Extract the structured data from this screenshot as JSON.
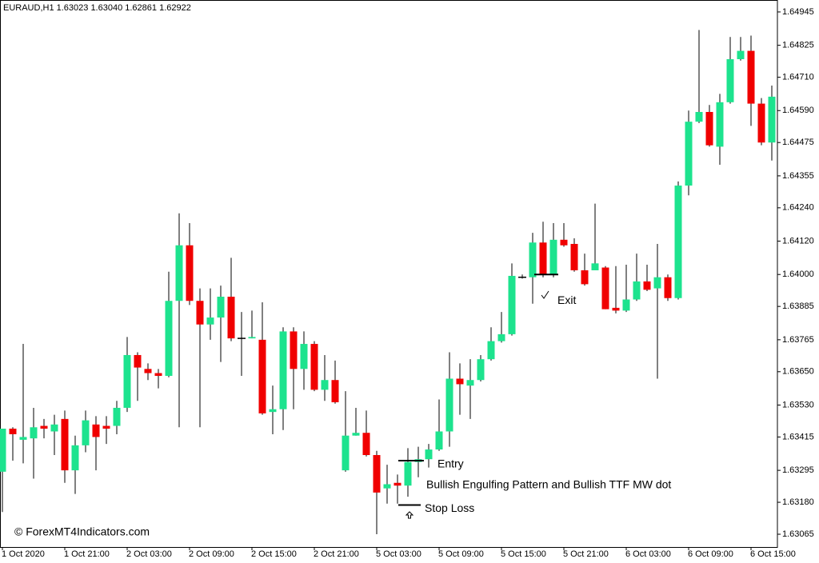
{
  "chart_data": {
    "type": "candlestick",
    "title": "EURAUD,H1  1.63023 1.63040 1.62861 1.62922",
    "up_color": "#1de38e",
    "down_color": "#f00000",
    "categories": [
      "1 Oct 2020",
      null,
      null,
      null,
      null,
      null,
      "1 Oct 21:00",
      null,
      null,
      null,
      null,
      null,
      "2 Oct 03:00",
      null,
      null,
      null,
      null,
      null,
      "2 Oct 09:00",
      null,
      null,
      null,
      null,
      null,
      "2 Oct 15:00",
      null,
      null,
      null,
      null,
      null,
      "2 Oct 21:00",
      null,
      null,
      null,
      null,
      null,
      "5 Oct 03:00",
      null,
      null,
      null,
      null,
      null,
      "5 Oct 09:00",
      null,
      null,
      null,
      null,
      null,
      "5 Oct 15:00",
      null,
      null,
      null,
      null,
      null,
      "5 Oct 21:00",
      null,
      null,
      null,
      null,
      null,
      "6 Oct 03:00",
      null,
      null,
      null,
      null,
      null,
      "6 Oct 09:00",
      null,
      null,
      null,
      null,
      null,
      "6 Oct 15:00",
      null,
      null
    ],
    "open": [
      1.6329,
      1.63445,
      1.63405,
      1.6341,
      1.63455,
      1.63435,
      1.6348,
      1.63295,
      1.63385,
      1.6346,
      1.63455,
      1.63455,
      1.6352,
      1.6371,
      1.6366,
      1.63645,
      1.63635,
      1.63905,
      1.64105,
      1.63905,
      1.6382,
      1.63845,
      1.6392,
      1.6377,
      1.6377,
      1.63765,
      1.63505,
      1.63515,
      1.63795,
      1.6366,
      1.6375,
      1.63585,
      1.6362,
      1.63295,
      1.6342,
      1.6343,
      1.6335,
      1.6323,
      1.6325,
      1.6324,
      1.63325,
      1.63335,
      1.6337,
      1.63435,
      1.63625,
      1.636,
      1.6362,
      1.63695,
      1.6376,
      1.63785,
      1.6399,
      1.6399,
      1.64115,
      1.64,
      1.64125,
      1.6411,
      1.64015,
      1.64015,
      1.64025,
      1.6388,
      1.6387,
      1.6391,
      1.63975,
      1.6395,
      1.6399,
      1.63915,
      1.6432,
      1.6455,
      1.64585,
      1.6446,
      1.6462,
      1.64775,
      1.64805,
      1.64615,
      1.64475
    ],
    "high": [
      1.63445,
      1.6345,
      1.6375,
      1.6352,
      1.6348,
      1.63495,
      1.6351,
      1.6342,
      1.6351,
      1.6349,
      1.6349,
      1.63545,
      1.63775,
      1.6372,
      1.6368,
      1.6366,
      1.6401,
      1.6422,
      1.64185,
      1.6395,
      1.6395,
      1.6396,
      1.6406,
      1.63865,
      1.6387,
      1.639,
      1.636,
      1.6381,
      1.6381,
      1.63795,
      1.6376,
      1.6371,
      1.6369,
      1.6358,
      1.6352,
      1.6351,
      1.63365,
      1.63315,
      1.6328,
      1.63375,
      1.6338,
      1.6339,
      1.6355,
      1.6372,
      1.6368,
      1.63695,
      1.6371,
      1.6381,
      1.63865,
      1.6404,
      1.64,
      1.6415,
      1.6419,
      1.64185,
      1.64185,
      1.6413,
      1.64075,
      1.64255,
      1.6403,
      1.6403,
      1.64035,
      1.64075,
      1.64035,
      1.6411,
      1.64,
      1.64335,
      1.6459,
      1.6488,
      1.6461,
      1.6465,
      1.64855,
      1.64855,
      1.6486,
      1.64635,
      1.6468
    ],
    "low": [
      1.63145,
      1.6333,
      1.6332,
      1.63265,
      1.6341,
      1.6335,
      1.6325,
      1.6321,
      1.6336,
      1.63295,
      1.6339,
      1.63425,
      1.63505,
      1.63545,
      1.6362,
      1.6359,
      1.6363,
      1.6345,
      1.6389,
      1.6345,
      1.63765,
      1.63685,
      1.6376,
      1.63635,
      1.6377,
      1.63495,
      1.63425,
      1.6344,
      1.63515,
      1.63585,
      1.6358,
      1.63545,
      1.63535,
      1.6329,
      1.6342,
      1.63345,
      1.63065,
      1.63175,
      1.63175,
      1.632,
      1.6327,
      1.63305,
      1.63365,
      1.6338,
      1.63495,
      1.6348,
      1.63615,
      1.6369,
      1.63755,
      1.6378,
      1.63985,
      1.63895,
      1.6399,
      1.6399,
      1.641,
      1.6401,
      1.6396,
      1.64015,
      1.63875,
      1.6386,
      1.63865,
      1.63905,
      1.6394,
      1.63625,
      1.63905,
      1.6391,
      1.64285,
      1.64545,
      1.6446,
      1.64395,
      1.64615,
      1.6477,
      1.64535,
      1.64465,
      1.6441
    ],
    "close": [
      1.63445,
      1.63425,
      1.63415,
      1.6345,
      1.63445,
      1.6346,
      1.63295,
      1.63385,
      1.63475,
      1.63415,
      1.63445,
      1.6352,
      1.6371,
      1.63665,
      1.63645,
      1.63635,
      1.63905,
      1.64105,
      1.63905,
      1.6382,
      1.63845,
      1.6392,
      1.6377,
      1.6377,
      1.63775,
      1.635,
      1.63515,
      1.63795,
      1.6366,
      1.6375,
      1.63585,
      1.6362,
      1.6354,
      1.6342,
      1.6343,
      1.6335,
      1.63215,
      1.63245,
      1.6324,
      1.63325,
      1.63335,
      1.6337,
      1.63435,
      1.63625,
      1.63605,
      1.6362,
      1.63695,
      1.6376,
      1.63785,
      1.63995,
      1.6399,
      1.64115,
      1.64,
      1.64125,
      1.64105,
      1.64015,
      1.63965,
      1.6404,
      1.63875,
      1.6387,
      1.6391,
      1.63975,
      1.63945,
      1.6399,
      1.63915,
      1.6432,
      1.6455,
      1.64585,
      1.64465,
      1.6462,
      1.64775,
      1.64805,
      1.64615,
      1.64475,
      1.6464
    ],
    "ylim": [
      1.63019,
      1.64988
    ],
    "yticks": [
      1.64945,
      1.64825,
      {
        "value": 1.6471,
        "label": "1.64710"
      },
      {
        "value": 1.6459,
        "label": "1.64590"
      },
      1.64475,
      1.64355,
      {
        "value": 1.6424,
        "label": "1.64240"
      },
      {
        "value": 1.6412,
        "label": "1.64120"
      },
      {
        "value": 1.64,
        "label": "1.64000"
      },
      1.63885,
      1.63765,
      {
        "value": 1.6365,
        "label": "1.63650"
      },
      {
        "value": 1.6353,
        "label": "1.63530"
      },
      1.63415,
      1.63295,
      {
        "value": 1.6318,
        "label": "1.63180"
      },
      1.63065
    ],
    "levels": [
      {
        "label": "Entry",
        "value": 1.6333
      },
      {
        "label": "Stop Loss",
        "value": 1.6317
      },
      {
        "label": "Exit",
        "value": 1.64
      }
    ],
    "note": "Bullish Engulfing Pattern and Bullish TTF MW dot",
    "watermark": "© ForexMT4Indicators.com"
  }
}
